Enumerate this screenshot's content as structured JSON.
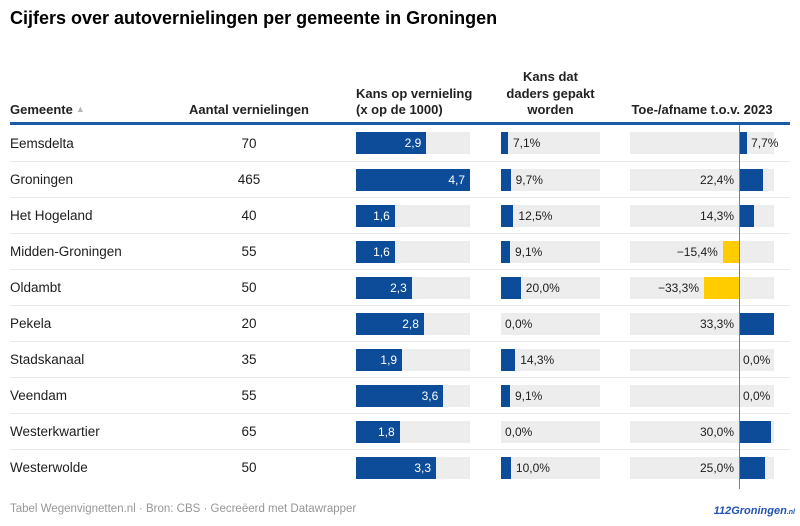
{
  "title": "Cijfers over autovernielingen per gemeente in Groningen",
  "sort_icon": "▲",
  "columns": {
    "gemeente": "Gemeente",
    "aantal": "Aantal vernielingen",
    "kans": "Kans op vernieling (x op de 1000)",
    "gepakt": "Kans dat daders gepakt worden",
    "toeafname": "Toe-/afname t.o.v. 2023"
  },
  "rows": [
    {
      "gemeente": "Eemsdelta",
      "aantal": "70",
      "kans_label": "2,9",
      "kans_val": 2.9,
      "gepakt_label": "7,1%",
      "gepakt_val": 7.1,
      "toe_label": "7,7%",
      "toe_val": 7.7,
      "toe_pos": "after-bar"
    },
    {
      "gemeente": "Groningen",
      "aantal": "465",
      "kans_label": "4,7",
      "kans_val": 4.7,
      "gepakt_label": "9,7%",
      "gepakt_val": 9.7,
      "toe_label": "22,4%",
      "toe_val": 22.4,
      "toe_pos": "before-axis"
    },
    {
      "gemeente": "Het Hogeland",
      "aantal": "40",
      "kans_label": "1,6",
      "kans_val": 1.6,
      "gepakt_label": "12,5%",
      "gepakt_val": 12.5,
      "toe_label": "14,3%",
      "toe_val": 14.3,
      "toe_pos": "before-axis"
    },
    {
      "gemeente": "Midden-Groningen",
      "aantal": "55",
      "kans_label": "1,6",
      "kans_val": 1.6,
      "gepakt_label": "9,1%",
      "gepakt_val": 9.1,
      "toe_label": "−15,4%",
      "toe_val": -15.4,
      "toe_pos": "before-bar"
    },
    {
      "gemeente": "Oldambt",
      "aantal": "50",
      "kans_label": "2,3",
      "kans_val": 2.3,
      "gepakt_label": "20,0%",
      "gepakt_val": 20.0,
      "toe_label": "−33,3%",
      "toe_val": -33.3,
      "toe_pos": "before-bar"
    },
    {
      "gemeente": "Pekela",
      "aantal": "20",
      "kans_label": "2,8",
      "kans_val": 2.8,
      "gepakt_label": "0,0%",
      "gepakt_val": 0.0,
      "toe_label": "33,3%",
      "toe_val": 33.3,
      "toe_pos": "before-axis"
    },
    {
      "gemeente": "Stadskanaal",
      "aantal": "35",
      "kans_label": "1,9",
      "kans_val": 1.9,
      "gepakt_label": "14,3%",
      "gepakt_val": 14.3,
      "toe_label": "0,0%",
      "toe_val": 0.0,
      "toe_pos": "after-axis"
    },
    {
      "gemeente": "Veendam",
      "aantal": "55",
      "kans_label": "3,6",
      "kans_val": 3.6,
      "gepakt_label": "9,1%",
      "gepakt_val": 9.1,
      "toe_label": "0,0%",
      "toe_val": 0.0,
      "toe_pos": "after-axis"
    },
    {
      "gemeente": "Westerkwartier",
      "aantal": "65",
      "kans_label": "1,8",
      "kans_val": 1.8,
      "gepakt_label": "0,0%",
      "gepakt_val": 0.0,
      "toe_label": "30,0%",
      "toe_val": 30.0,
      "toe_pos": "before-axis"
    },
    {
      "gemeente": "Westerwolde",
      "aantal": "50",
      "kans_label": "3,3",
      "kans_val": 3.3,
      "gepakt_label": "10,0%",
      "gepakt_val": 10.0,
      "toe_label": "25,0%",
      "toe_val": 25.0,
      "toe_pos": "before-axis"
    }
  ],
  "footer": {
    "text": "Tabel Wegenvignetten.nl · Bron: CBS · Gecreëerd met Datawrapper"
  },
  "logo": {
    "name": "112Groningen",
    "suffix": ".nl"
  },
  "colors": {
    "bar_blue": "#0c4c98",
    "bar_yellow": "#ffcc00",
    "track_gray": "#ededed",
    "rule_blue": "#1a5ba6",
    "axis_gray": "#7d7d7d"
  },
  "chart_data": {
    "type": "table",
    "title": "Cijfers over autovernielingen per gemeente in Groningen",
    "categories": [
      "Eemsdelta",
      "Groningen",
      "Het Hogeland",
      "Midden-Groningen",
      "Oldambt",
      "Pekela",
      "Stadskanaal",
      "Veendam",
      "Westerkwartier",
      "Westerwolde"
    ],
    "series": [
      {
        "name": "Aantal vernielingen",
        "values": [
          70,
          465,
          40,
          55,
          50,
          20,
          35,
          55,
          65,
          50
        ]
      },
      {
        "name": "Kans op vernieling (x op de 1000)",
        "type": "bar",
        "values": [
          2.9,
          4.7,
          1.6,
          1.6,
          2.3,
          2.8,
          1.9,
          3.6,
          1.8,
          3.3
        ],
        "bar_scale_max": 4.7,
        "bar_color": "#0c4c98"
      },
      {
        "name": "Kans dat daders gepakt worden",
        "type": "bar",
        "unit": "%",
        "values": [
          7.1,
          9.7,
          12.5,
          9.1,
          20.0,
          0.0,
          14.3,
          9.1,
          0.0,
          10.0
        ],
        "axis_range": [
          0,
          100
        ],
        "bar_color": "#0c4c98"
      },
      {
        "name": "Toe-/afname t.o.v. 2023",
        "type": "bar-diverging",
        "unit": "%",
        "values": [
          7.7,
          22.4,
          14.3,
          -15.4,
          -33.3,
          33.3,
          0.0,
          0.0,
          30.0,
          25.0
        ],
        "positive_color": "#0c4c98",
        "negative_color": "#ffcc00",
        "zero_axis": true
      }
    ],
    "sorted_by": "Gemeente ascending",
    "footer": "Tabel Wegenvignetten.nl · Bron: CBS · Gecreëerd met Datawrapper"
  }
}
